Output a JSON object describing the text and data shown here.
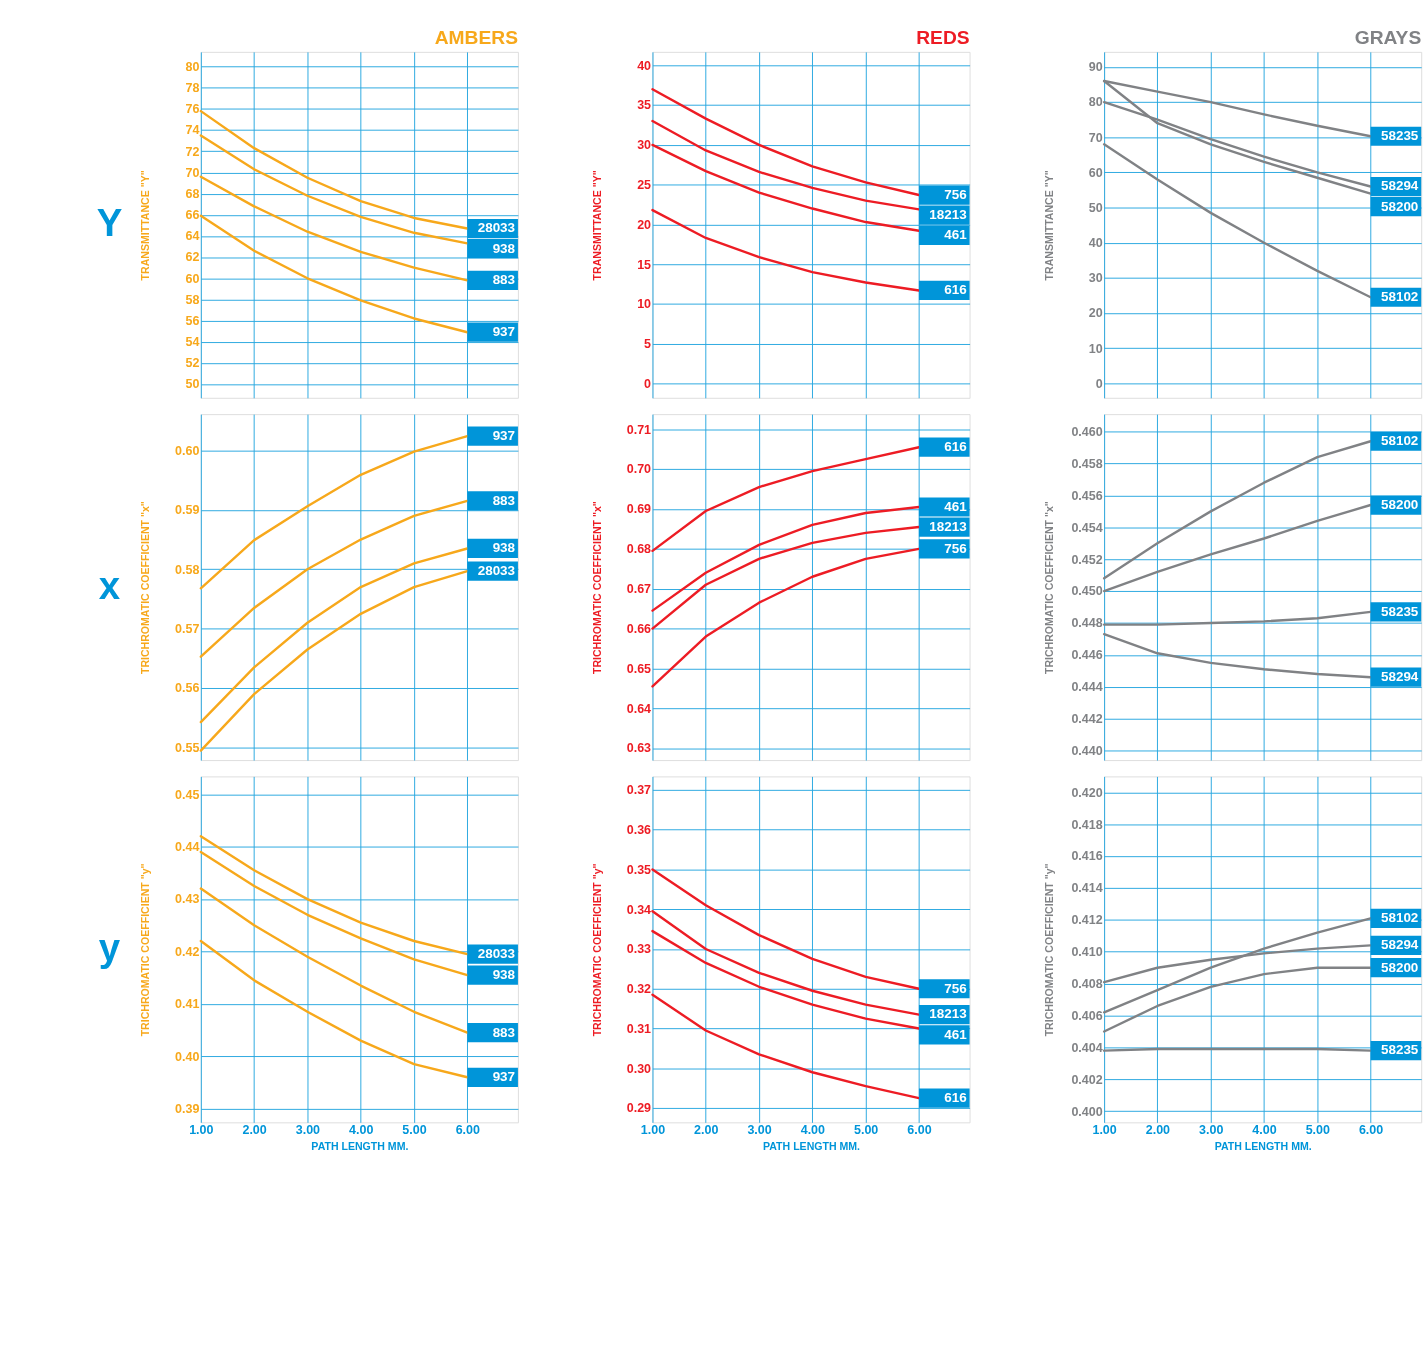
{
  "chart_data": [
    {
      "type": "line",
      "title": "AMBERS",
      "ylabel": "TRANSMITTANCE \"Y\"",
      "annotations": [
        "Y"
      ],
      "tick_labels": "y",
      "grid": true,
      "marker": "none",
      "x": [
        1,
        2,
        3,
        4,
        5,
        6
      ],
      "xlim": [
        1,
        6.95
      ],
      "xticks": [
        {
          "value": 1,
          "label": null
        },
        {
          "value": 2,
          "label": null
        },
        {
          "value": 3,
          "label": null
        },
        {
          "value": 4,
          "label": null
        },
        {
          "value": 5,
          "label": null
        },
        {
          "value": 6,
          "label": null
        }
      ],
      "ylim": [
        48.7,
        81.4
      ],
      "yticks": [
        50,
        52,
        54,
        56,
        58,
        60,
        62,
        64,
        66,
        68,
        70,
        72,
        74,
        76,
        78,
        80
      ],
      "series": [
        {
          "name": "28033",
          "color": "#f7a81b",
          "values": [
            75.8,
            72.3,
            69.5,
            67.3,
            65.7,
            64.7
          ]
        },
        {
          "name": "938",
          "color": "#f7a81b",
          "values": [
            73.5,
            70.3,
            67.8,
            65.8,
            64.3,
            63.3
          ]
        },
        {
          "name": "883",
          "color": "#f7a81b",
          "values": [
            69.6,
            66.8,
            64.4,
            62.5,
            61.0,
            59.8
          ]
        },
        {
          "name": "937",
          "color": "#f7a81b",
          "values": [
            65.9,
            62.6,
            60.0,
            57.9,
            56.2,
            54.9
          ]
        }
      ]
    },
    {
      "type": "line",
      "title": "REDS",
      "ylabel": "TRANSMITTANCE \"Y\"",
      "tick_labels": "y",
      "grid": true,
      "marker": "none",
      "x": [
        1,
        2,
        3,
        4,
        5,
        6
      ],
      "xlim": [
        1,
        6.95
      ],
      "xticks": [
        {
          "value": 1,
          "label": null
        },
        {
          "value": 2,
          "label": null
        },
        {
          "value": 3,
          "label": null
        },
        {
          "value": 4,
          "label": null
        },
        {
          "value": 5,
          "label": null
        },
        {
          "value": 6,
          "label": null
        }
      ],
      "ylim": [
        -1.8,
        41.7
      ],
      "yticks": [
        0,
        5,
        10,
        15,
        20,
        25,
        30,
        35,
        40
      ],
      "series": [
        {
          "name": "756",
          "color": "#ed1c24",
          "values": [
            37.0,
            33.3,
            30.0,
            27.3,
            25.3,
            23.7
          ]
        },
        {
          "name": "18213",
          "color": "#ed1c24",
          "values": [
            33.0,
            29.3,
            26.6,
            24.6,
            23.0,
            21.9
          ]
        },
        {
          "name": "461",
          "color": "#ed1c24",
          "values": [
            30.0,
            26.7,
            24.0,
            22.0,
            20.3,
            19.2
          ]
        },
        {
          "name": "616",
          "color": "#ed1c24",
          "values": [
            21.8,
            18.3,
            15.9,
            14.0,
            12.7,
            11.7
          ]
        }
      ]
    },
    {
      "type": "line",
      "title": "GRAYS",
      "ylabel": "TRANSMITTANCE \"Y\"",
      "tick_labels": "y",
      "grid": true,
      "marker": "none",
      "x": [
        1,
        2,
        3,
        4,
        5,
        6
      ],
      "xlim": [
        1,
        6.95
      ],
      "xticks": [
        {
          "value": 1,
          "label": null
        },
        {
          "value": 2,
          "label": null
        },
        {
          "value": 3,
          "label": null
        },
        {
          "value": 4,
          "label": null
        },
        {
          "value": 5,
          "label": null
        },
        {
          "value": 6,
          "label": null
        }
      ],
      "ylim": [
        -4.1,
        94.3
      ],
      "yticks": [
        0,
        10,
        20,
        30,
        40,
        50,
        60,
        70,
        80,
        90
      ],
      "series": [
        {
          "name": "58235",
          "color": "#808285",
          "values": [
            86,
            83,
            80,
            76.5,
            73.3,
            70.3
          ]
        },
        {
          "name": "58294",
          "color": "#808285",
          "values": [
            80,
            75,
            69.5,
            64.5,
            60,
            56
          ]
        },
        {
          "name": "58200",
          "color": "#808285",
          "values": [
            86,
            74,
            68,
            63,
            58.5,
            54
          ]
        },
        {
          "name": "58102",
          "color": "#808285",
          "values": [
            68,
            58,
            48.5,
            40,
            32,
            24.5
          ]
        }
      ]
    },
    {
      "type": "line",
      "ylabel": "TRICHROMATIC COEFFICIENT \"x\"",
      "annotations": [
        "x"
      ],
      "tick_labels": "y",
      "grid": true,
      "marker": "none",
      "x": [
        1,
        2,
        3,
        4,
        5,
        6
      ],
      "xlim": [
        1,
        6.95
      ],
      "xticks": [
        {
          "value": 1,
          "label": null
        },
        {
          "value": 2,
          "label": null
        },
        {
          "value": 3,
          "label": null
        },
        {
          "value": 4,
          "label": null
        },
        {
          "value": 5,
          "label": null
        },
        {
          "value": 6,
          "label": null
        }
      ],
      "ylim": [
        0.5479,
        0.6061
      ],
      "yticks": [
        {
          "value": 0.55,
          "label": "0.55"
        },
        {
          "value": 0.56,
          "label": "0.56"
        },
        {
          "value": 0.57,
          "label": "0.57"
        },
        {
          "value": 0.58,
          "label": "0.58"
        },
        {
          "value": 0.59,
          "label": "0.59"
        },
        {
          "value": 0.6,
          "label": "0.60"
        }
      ],
      "series": [
        {
          "name": "937",
          "color": "#f7a81b",
          "values": [
            0.5768,
            0.5849,
            0.5906,
            0.5959,
            0.5998,
            0.6024
          ]
        },
        {
          "name": "883",
          "color": "#f7a81b",
          "values": [
            0.5653,
            0.5735,
            0.58,
            0.585,
            0.589,
            0.5915
          ]
        },
        {
          "name": "938",
          "color": "#f7a81b",
          "values": [
            0.5543,
            0.5635,
            0.571,
            0.577,
            0.581,
            0.5835
          ]
        },
        {
          "name": "28033",
          "color": "#f7a81b",
          "values": [
            0.5495,
            0.559,
            0.5665,
            0.5725,
            0.577,
            0.5797
          ]
        }
      ]
    },
    {
      "type": "line",
      "ylabel": "TRICHROMATIC COEFFICIENT \"x\"",
      "tick_labels": "y",
      "grid": true,
      "marker": "none",
      "x": [
        1,
        2,
        3,
        4,
        5,
        6
      ],
      "xlim": [
        1,
        6.95
      ],
      "xticks": [
        {
          "value": 1,
          "label": null
        },
        {
          "value": 2,
          "label": null
        },
        {
          "value": 3,
          "label": null
        },
        {
          "value": 4,
          "label": null
        },
        {
          "value": 5,
          "label": null
        },
        {
          "value": 6,
          "label": null
        }
      ],
      "ylim": [
        0.627,
        0.7138
      ],
      "yticks": [
        {
          "value": 0.63,
          "label": "0.63"
        },
        {
          "value": 0.64,
          "label": "0.64"
        },
        {
          "value": 0.65,
          "label": "0.65"
        },
        {
          "value": 0.66,
          "label": "0.66"
        },
        {
          "value": 0.67,
          "label": "0.67"
        },
        {
          "value": 0.68,
          "label": "0.68"
        },
        {
          "value": 0.69,
          "label": "0.69"
        },
        {
          "value": 0.7,
          "label": "0.70"
        },
        {
          "value": 0.71,
          "label": "0.71"
        }
      ],
      "series": [
        {
          "name": "616",
          "color": "#ed1c24",
          "values": [
            0.6795,
            0.6895,
            0.6955,
            0.6995,
            0.7025,
            0.7055
          ]
        },
        {
          "name": "461",
          "color": "#ed1c24",
          "values": [
            0.6645,
            0.674,
            0.681,
            0.686,
            0.689,
            0.6905
          ]
        },
        {
          "name": "18213",
          "color": "#ed1c24",
          "values": [
            0.66,
            0.671,
            0.6775,
            0.6815,
            0.684,
            0.6855
          ]
        },
        {
          "name": "756",
          "color": "#ed1c24",
          "values": [
            0.6455,
            0.658,
            0.6665,
            0.673,
            0.6775,
            0.68
          ]
        }
      ]
    },
    {
      "type": "line",
      "ylabel": "TRICHROMATIC COEFFICIENT \"x\"",
      "tick_labels": "y",
      "grid": true,
      "marker": "none",
      "x": [
        1,
        2,
        3,
        4,
        5,
        6
      ],
      "xlim": [
        1,
        6.95
      ],
      "xticks": [
        {
          "value": 1,
          "label": null
        },
        {
          "value": 2,
          "label": null
        },
        {
          "value": 3,
          "label": null
        },
        {
          "value": 4,
          "label": null
        },
        {
          "value": 5,
          "label": null
        },
        {
          "value": 6,
          "label": null
        }
      ],
      "ylim": [
        0.4394,
        0.4611
      ],
      "yticks": [
        {
          "value": 0.44,
          "label": "0.440"
        },
        {
          "value": 0.442,
          "label": "0.442"
        },
        {
          "value": 0.444,
          "label": "0.444"
        },
        {
          "value": 0.446,
          "label": "0.446"
        },
        {
          "value": 0.448,
          "label": "0.448"
        },
        {
          "value": 0.45,
          "label": "0.450"
        },
        {
          "value": 0.452,
          "label": "0.452"
        },
        {
          "value": 0.454,
          "label": "0.454"
        },
        {
          "value": 0.456,
          "label": "0.456"
        },
        {
          "value": 0.458,
          "label": "0.458"
        },
        {
          "value": 0.46,
          "label": "0.460"
        }
      ],
      "series": [
        {
          "name": "58102",
          "color": "#808285",
          "values": [
            0.4508,
            0.453,
            0.455,
            0.4568,
            0.4584,
            0.4594
          ]
        },
        {
          "name": "58200",
          "color": "#808285",
          "values": [
            0.45,
            0.4512,
            0.4523,
            0.4533,
            0.4544,
            0.4554
          ]
        },
        {
          "name": "58235",
          "color": "#808285",
          "values": [
            0.4479,
            0.4479,
            0.448,
            0.4481,
            0.4483,
            0.4487
          ]
        },
        {
          "name": "58294",
          "color": "#808285",
          "values": [
            0.4473,
            0.4461,
            0.4455,
            0.4451,
            0.4448,
            0.4446
          ]
        }
      ]
    },
    {
      "type": "line",
      "xlabel": "PATH LENGTH MM.",
      "ylabel": "TRICHROMATIC COEFFICIENT \"y\"",
      "annotations": [
        "y"
      ],
      "grid": true,
      "marker": "none",
      "x": [
        1,
        2,
        3,
        4,
        5,
        6
      ],
      "xlim": [
        1,
        6.95
      ],
      "xticks": [
        {
          "value": 1,
          "label": "1.00"
        },
        {
          "value": 2,
          "label": "2.00"
        },
        {
          "value": 3,
          "label": "3.00"
        },
        {
          "value": 4,
          "label": "4.00"
        },
        {
          "value": 5,
          "label": "5.00"
        },
        {
          "value": 6,
          "label": "6.00"
        }
      ],
      "ylim": [
        0.3874,
        0.4534
      ],
      "yticks": [
        {
          "value": 0.39,
          "label": "0.39"
        },
        {
          "value": 0.4,
          "label": "0.40"
        },
        {
          "value": 0.41,
          "label": "0.41"
        },
        {
          "value": 0.42,
          "label": "0.42"
        },
        {
          "value": 0.43,
          "label": "0.43"
        },
        {
          "value": 0.44,
          "label": "0.44"
        },
        {
          "value": 0.45,
          "label": "0.45"
        }
      ],
      "series": [
        {
          "name": "28033",
          "color": "#f7a81b",
          "values": [
            0.442,
            0.4355,
            0.43,
            0.4255,
            0.422,
            0.4195
          ]
        },
        {
          "name": "938",
          "color": "#f7a81b",
          "values": [
            0.439,
            0.4325,
            0.427,
            0.4225,
            0.4185,
            0.4155
          ]
        },
        {
          "name": "883",
          "color": "#f7a81b",
          "values": [
            0.432,
            0.425,
            0.419,
            0.4135,
            0.4085,
            0.4045
          ]
        },
        {
          "name": "937",
          "color": "#f7a81b",
          "values": [
            0.422,
            0.4145,
            0.4085,
            0.403,
            0.3985,
            0.396
          ]
        }
      ]
    },
    {
      "type": "line",
      "xlabel": "PATH LENGTH MM.",
      "ylabel": "TRICHROMATIC COEFFICIENT \"y\"",
      "grid": true,
      "marker": "none",
      "x": [
        1,
        2,
        3,
        4,
        5,
        6
      ],
      "xlim": [
        1,
        6.95
      ],
      "xticks": [
        {
          "value": 1,
          "label": "1.00"
        },
        {
          "value": 2,
          "label": "2.00"
        },
        {
          "value": 3,
          "label": "3.00"
        },
        {
          "value": 4,
          "label": "4.00"
        },
        {
          "value": 5,
          "label": "5.00"
        },
        {
          "value": 6,
          "label": "6.00"
        }
      ],
      "ylim": [
        0.2864,
        0.3734
      ],
      "yticks": [
        {
          "value": 0.29,
          "label": "0.29"
        },
        {
          "value": 0.3,
          "label": "0.30"
        },
        {
          "value": 0.31,
          "label": "0.31"
        },
        {
          "value": 0.32,
          "label": "0.32"
        },
        {
          "value": 0.33,
          "label": "0.33"
        },
        {
          "value": 0.34,
          "label": "0.34"
        },
        {
          "value": 0.35,
          "label": "0.35"
        },
        {
          "value": 0.36,
          "label": "0.36"
        },
        {
          "value": 0.37,
          "label": "0.37"
        }
      ],
      "series": [
        {
          "name": "756",
          "color": "#ed1c24",
          "values": [
            0.35,
            0.341,
            0.3335,
            0.3275,
            0.323,
            0.32
          ]
        },
        {
          "name": "18213",
          "color": "#ed1c24",
          "values": [
            0.3395,
            0.33,
            0.324,
            0.3195,
            0.316,
            0.3135
          ]
        },
        {
          "name": "461",
          "color": "#ed1c24",
          "values": [
            0.3345,
            0.3265,
            0.3205,
            0.316,
            0.3125,
            0.31
          ]
        },
        {
          "name": "616",
          "color": "#ed1c24",
          "values": [
            0.3185,
            0.3095,
            0.3035,
            0.299,
            0.2955,
            0.2925
          ]
        }
      ]
    },
    {
      "type": "line",
      "xlabel": "PATH LENGTH MM.",
      "ylabel": "TRICHROMATIC COEFFICIENT \"y\"",
      "grid": true,
      "marker": "none",
      "x": [
        1,
        2,
        3,
        4,
        5,
        6
      ],
      "xlim": [
        1,
        6.95
      ],
      "xticks": [
        {
          "value": 1,
          "label": "1.00"
        },
        {
          "value": 2,
          "label": "2.00"
        },
        {
          "value": 3,
          "label": "3.00"
        },
        {
          "value": 4,
          "label": "4.00"
        },
        {
          "value": 5,
          "label": "5.00"
        },
        {
          "value": 6,
          "label": "6.00"
        }
      ],
      "ylim": [
        0.3993,
        0.421
      ],
      "yticks": [
        {
          "value": 0.4,
          "label": "0.400"
        },
        {
          "value": 0.402,
          "label": "0.402"
        },
        {
          "value": 0.404,
          "label": "0.404"
        },
        {
          "value": 0.406,
          "label": "0.406"
        },
        {
          "value": 0.408,
          "label": "0.408"
        },
        {
          "value": 0.41,
          "label": "0.410"
        },
        {
          "value": 0.412,
          "label": "0.412"
        },
        {
          "value": 0.414,
          "label": "0.414"
        },
        {
          "value": 0.416,
          "label": "0.416"
        },
        {
          "value": 0.418,
          "label": "0.418"
        },
        {
          "value": 0.42,
          "label": "0.420"
        }
      ],
      "series": [
        {
          "name": "58102",
          "color": "#808285",
          "values": [
            0.4062,
            0.4076,
            0.409,
            0.4102,
            0.4112,
            0.4121
          ]
        },
        {
          "name": "58294",
          "color": "#808285",
          "values": [
            0.4081,
            0.409,
            0.4095,
            0.4099,
            0.4102,
            0.4104
          ]
        },
        {
          "name": "58200",
          "color": "#808285",
          "values": [
            0.405,
            0.4066,
            0.4078,
            0.4086,
            0.409,
            0.409
          ]
        },
        {
          "name": "58235",
          "color": "#808285",
          "values": [
            0.4038,
            0.4039,
            0.4039,
            0.4039,
            0.4039,
            0.4038
          ]
        }
      ]
    }
  ]
}
